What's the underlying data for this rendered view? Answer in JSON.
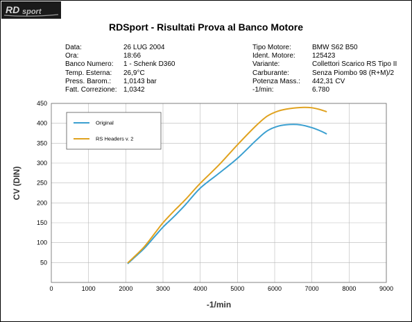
{
  "header": {
    "logo_text": "RDsport",
    "title": "RDSport - Risultati Prova al Banco Motore"
  },
  "info_left": [
    {
      "key": "Data:",
      "value": "26 LUG 2004"
    },
    {
      "key": "Ora:",
      "value": "18:66"
    },
    {
      "key": "Banco Numero:",
      "value": "1 - Schenk D360"
    },
    {
      "key": "Temp. Esterna:",
      "value": "26,9°C"
    },
    {
      "key": "Press. Barom.:",
      "value": "1,0143 bar"
    },
    {
      "key": "Fatt. Correzione:",
      "value": "1,0342"
    }
  ],
  "info_right": [
    {
      "key": "Tipo Motore:",
      "value": "BMW S62 B50"
    },
    {
      "key": "Ident. Motore:",
      "value": "125423"
    },
    {
      "key": "Variante:",
      "value": "Collettori Scarico RS Tipo II"
    },
    {
      "key": "Carburante:",
      "value": "Senza Piombo 98 (R+M)/2"
    },
    {
      "key": "Potenza Mass.:",
      "value": "442,31 CV"
    },
    {
      "key": "-1/min:",
      "value": "6.780"
    }
  ],
  "colors": {
    "original": "#3a9fd0",
    "rs_headers": "#e0a21f",
    "grid": "#b8b8b8",
    "logo_bg": "#1a1a1a"
  },
  "chart_data": {
    "type": "line",
    "xlabel": "-1/min",
    "ylabel": "CV (DIN)",
    "xlim": [
      0,
      9000
    ],
    "ylim": [
      0,
      450
    ],
    "x_ticks": [
      0,
      1000,
      2000,
      3000,
      4000,
      5000,
      6000,
      7000,
      8000,
      9000
    ],
    "y_ticks": [
      50,
      100,
      150,
      200,
      250,
      300,
      350,
      400,
      450
    ],
    "grid": true,
    "legend_position": "top-left",
    "series": [
      {
        "name": "Original",
        "color": "#3a9fd0",
        "x": [
          2050,
          2200,
          2500,
          2800,
          3000,
          3300,
          3600,
          4000,
          4500,
          5000,
          5500,
          5800,
          6100,
          6400,
          6700,
          7000,
          7250,
          7400
        ],
        "y": [
          47,
          60,
          86,
          118,
          139,
          166,
          195,
          237,
          274,
          312,
          357,
          381,
          393,
          397,
          396,
          389,
          380,
          373
        ]
      },
      {
        "name": "RS Headers v. 2",
        "color": "#e0a21f",
        "x": [
          2050,
          2200,
          2500,
          2800,
          3000,
          3300,
          3600,
          4000,
          4500,
          5000,
          5500,
          5800,
          6100,
          6400,
          6780,
          7000,
          7200,
          7400
        ],
        "y": [
          49,
          62,
          90,
          126,
          150,
          180,
          208,
          249,
          295,
          346,
          394,
          418,
          431,
          437,
          440,
          439,
          435,
          429
        ]
      }
    ]
  }
}
